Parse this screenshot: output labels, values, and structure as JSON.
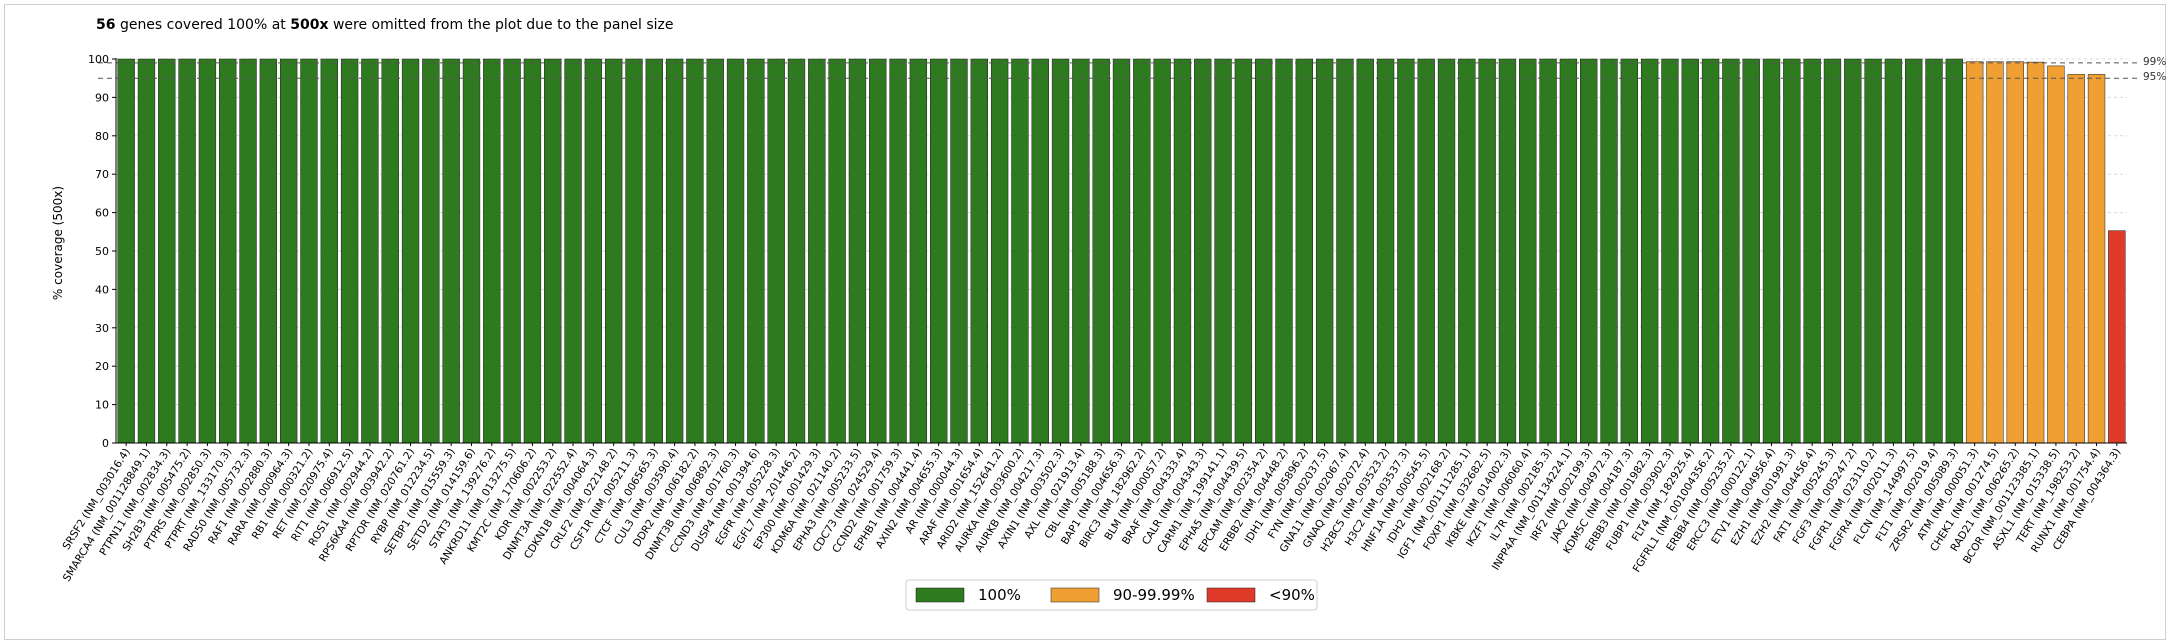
{
  "note": {
    "count": "56",
    "middle": "genes covered 100% at",
    "depth": "500x",
    "suffix": "were omitted from the plot due to the panel size"
  },
  "chart_data": {
    "type": "bar",
    "ylabel": "% coverage (500x)",
    "ylim": [
      0,
      100
    ],
    "yticks": [
      0,
      10,
      20,
      30,
      40,
      50,
      60,
      70,
      80,
      90,
      100
    ],
    "thresholds": [
      {
        "value": 99,
        "label": "99%"
      },
      {
        "value": 95,
        "label": "95%"
      }
    ],
    "legend": [
      {
        "label": "100%",
        "color": "#2d7a1f"
      },
      {
        "label": "90-99.99%",
        "color": "#f0a032"
      },
      {
        "label": "<90%",
        "color": "#e03a2a"
      }
    ],
    "categories": [
      "SRSF2 (NM_003016.4)",
      "SMARCA4 (NM_001128849.1)",
      "PTPN11 (NM_002834.3)",
      "SH2B3 (NM_005475.2)",
      "PTPRS (NM_002850.3)",
      "PTPRT (NM_133170.3)",
      "RAD50 (NM_005732.3)",
      "RAF1 (NM_002880.3)",
      "RARA (NM_000964.3)",
      "RB1 (NM_000321.2)",
      "RET (NM_020975.4)",
      "RIT1 (NM_006912.5)",
      "ROS1 (NM_002944.2)",
      "RPS6KA4 (NM_003942.2)",
      "RPTOR (NM_020761.2)",
      "RYBP (NM_012234.5)",
      "SETBP1 (NM_015559.3)",
      "SETD2 (NM_014159.6)",
      "STAT3 (NM_139276.2)",
      "ANKRD11 (NM_013275.5)",
      "KMT2C (NM_170606.2)",
      "KDR (NM_002253.2)",
      "DNMT3A (NM_022552.4)",
      "CDKN1B (NM_004064.3)",
      "CRLF2 (NM_022148.2)",
      "CSF1R (NM_005211.3)",
      "CTCF (NM_006565.3)",
      "CUL3 (NM_003590.4)",
      "DDR2 (NM_006182.2)",
      "DNMT3B (NM_006892.3)",
      "CCND3 (NM_001760.3)",
      "DUSP4 (NM_001394.6)",
      "EGFR (NM_005228.3)",
      "EGFL7 (NM_201446.2)",
      "EP300 (NM_001429.3)",
      "KDM6A (NM_021140.2)",
      "EPHA3 (NM_005233.5)",
      "CDC73 (NM_024529.4)",
      "CCND2 (NM_001759.3)",
      "EPHB1 (NM_004441.4)",
      "AXIN2 (NM_004655.3)",
      "AR (NM_000044.3)",
      "ARAF (NM_001654.4)",
      "ARID2 (NM_152641.2)",
      "AURKA (NM_003600.2)",
      "AURKB (NM_004217.3)",
      "AXIN1 (NM_003502.3)",
      "AXL (NM_021913.4)",
      "CBL (NM_005188.3)",
      "BAP1 (NM_004656.3)",
      "BIRC3 (NM_182962.2)",
      "BLM (NM_000057.2)",
      "BRAF (NM_004333.4)",
      "CALR (NM_004343.3)",
      "CARM1 (NM_199141.1)",
      "EPHA5 (NM_004439.5)",
      "EPCAM (NM_002354.2)",
      "ERBB2 (NM_004448.2)",
      "IDH1 (NM_005896.2)",
      "FYN (NM_002037.5)",
      "GNA11 (NM_002067.4)",
      "GNAQ (NM_002072.4)",
      "H2BC5 (NM_003523.2)",
      "H3C2 (NM_003537.3)",
      "HNF1A (NM_000545.5)",
      "IDH2 (NM_002168.2)",
      "IGF1 (NM_001111285.1)",
      "FOXP1 (NM_032682.5)",
      "IKBKE (NM_014002.3)",
      "IKZF1 (NM_006060.4)",
      "IL7R (NM_002185.3)",
      "INPP4A (NM_001134224.1)",
      "IRF2 (NM_002199.3)",
      "JAK2 (NM_004972.3)",
      "KDM5C (NM_004187.3)",
      "ERBB3 (NM_001982.3)",
      "FUBP1 (NM_003902.3)",
      "FLT4 (NM_182925.4)",
      "FGFRL1 (NM_001004356.2)",
      "ERBB4 (NM_005235.2)",
      "ERCC3 (NM_000122.1)",
      "ETV1 (NM_004956.4)",
      "EZH1 (NM_001991.3)",
      "EZH2 (NM_004456.4)",
      "FAT1 (NM_005245.3)",
      "FGF3 (NM_005247.2)",
      "FGFR1 (NM_023110.2)",
      "FGFR4 (NM_002011.3)",
      "FLCN (NM_144997.5)",
      "FLT1 (NM_002019.4)",
      "ZRSR2 (NM_005089.3)",
      "ATM (NM_000051.3)",
      "CHEK1 (NM_001274.5)",
      "RAD21 (NM_006265.2)",
      "BCOR (NM_001123385.1)",
      "ASXL1 (NM_015338.5)",
      "TERT (NM_198253.2)",
      "RUNX1 (NM_001754.4)",
      "CEBPA (NM_004364.3)"
    ],
    "values": [
      100,
      100,
      100,
      100,
      100,
      100,
      100,
      100,
      100,
      100,
      100,
      100,
      100,
      100,
      100,
      100,
      100,
      100,
      100,
      100,
      100,
      100,
      100,
      100,
      100,
      100,
      100,
      100,
      100,
      100,
      100,
      100,
      100,
      100,
      100,
      100,
      100,
      100,
      100,
      100,
      100,
      100,
      100,
      100,
      100,
      100,
      100,
      100,
      100,
      100,
      100,
      100,
      100,
      100,
      100,
      100,
      100,
      100,
      100,
      100,
      100,
      100,
      100,
      100,
      100,
      100,
      100,
      100,
      100,
      100,
      100,
      100,
      100,
      100,
      100,
      100,
      100,
      100,
      100,
      100,
      100,
      100,
      100,
      100,
      100,
      100,
      100,
      100,
      100,
      100,
      100,
      99.3,
      99.3,
      99.3,
      99.2,
      98.2,
      96,
      96,
      55.3
    ],
    "grid": "horizontal dashed",
    "legend_placement": "bottom-center"
  }
}
